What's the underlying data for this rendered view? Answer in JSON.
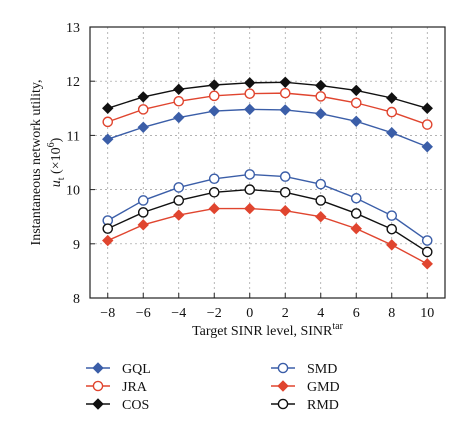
{
  "chart_data": {
    "type": "line",
    "x": [
      -8,
      -6,
      -4,
      -2,
      0,
      2,
      4,
      6,
      8,
      10
    ],
    "xlim": [
      -9,
      11
    ],
    "ylim": [
      8,
      13
    ],
    "xticks": [
      "-8",
      "-6",
      "-4",
      "-2",
      "0",
      "2",
      "4",
      "6",
      "8",
      "10"
    ],
    "yticks": [
      "8",
      "9",
      "10",
      "11",
      "12",
      "13"
    ],
    "xlabel": "Target SINR level, SINR",
    "xlabel_sup": "tar",
    "ylabel_line1": "Instantaneous network utility,",
    "ylabel_var": "u",
    "ylabel_sub": "t",
    "ylabel_rest": " (×10",
    "ylabel_exp": "6",
    "ylabel_close": ")",
    "grid": true,
    "legend_placement": "bottom",
    "series": [
      {
        "name": "GQL",
        "color": "#3b5ea8",
        "marker": "diamond",
        "filled": true,
        "values": [
          10.93,
          11.15,
          11.33,
          11.45,
          11.48,
          11.47,
          11.4,
          11.26,
          11.05,
          10.79
        ]
      },
      {
        "name": "JRA",
        "color": "#e0452f",
        "marker": "circle",
        "filled": false,
        "values": [
          11.25,
          11.48,
          11.63,
          11.73,
          11.77,
          11.78,
          11.72,
          11.6,
          11.43,
          11.2
        ]
      },
      {
        "name": "COS",
        "color": "#111111",
        "marker": "diamond",
        "filled": true,
        "values": [
          11.5,
          11.71,
          11.85,
          11.93,
          11.97,
          11.98,
          11.92,
          11.83,
          11.69,
          11.5
        ]
      },
      {
        "name": "SMD",
        "color": "#3b5ea8",
        "marker": "circle",
        "filled": false,
        "values": [
          9.43,
          9.8,
          10.04,
          10.2,
          10.28,
          10.24,
          10.1,
          9.84,
          9.52,
          9.06
        ]
      },
      {
        "name": "GMD",
        "color": "#e0452f",
        "marker": "diamond",
        "filled": true,
        "values": [
          9.06,
          9.35,
          9.53,
          9.65,
          9.65,
          9.61,
          9.5,
          9.28,
          8.98,
          8.63
        ]
      },
      {
        "name": "RMD",
        "color": "#111111",
        "marker": "circle",
        "filled": false,
        "values": [
          9.28,
          9.58,
          9.8,
          9.95,
          10.0,
          9.95,
          9.8,
          9.56,
          9.27,
          8.85
        ]
      }
    ]
  }
}
